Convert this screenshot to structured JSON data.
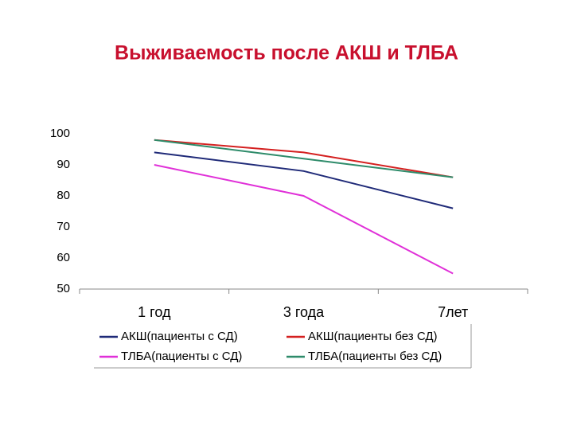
{
  "chart_data": {
    "type": "line",
    "title": "Выживаемость после АКШ и ТЛБА",
    "categories": [
      "1 год",
      "3 года",
      "7лет"
    ],
    "series": [
      {
        "name": "АКШ(пациенты с СД)",
        "color": "#1f2a78",
        "values": [
          94,
          88,
          76
        ]
      },
      {
        "name": "ТЛБА(пациенты с СД)",
        "color": "#e030d8",
        "values": [
          90,
          80,
          55
        ]
      },
      {
        "name": "АКШ(пациенты без СД)",
        "color": "#d42020",
        "values": [
          98,
          94,
          86
        ]
      },
      {
        "name": "ТЛБА(пациенты без СД)",
        "color": "#2e8b6a",
        "values": [
          98,
          92,
          86
        ]
      }
    ],
    "ylim": [
      50,
      100
    ],
    "yticks": [
      50,
      60,
      70,
      80,
      90,
      100
    ],
    "grid": false
  }
}
